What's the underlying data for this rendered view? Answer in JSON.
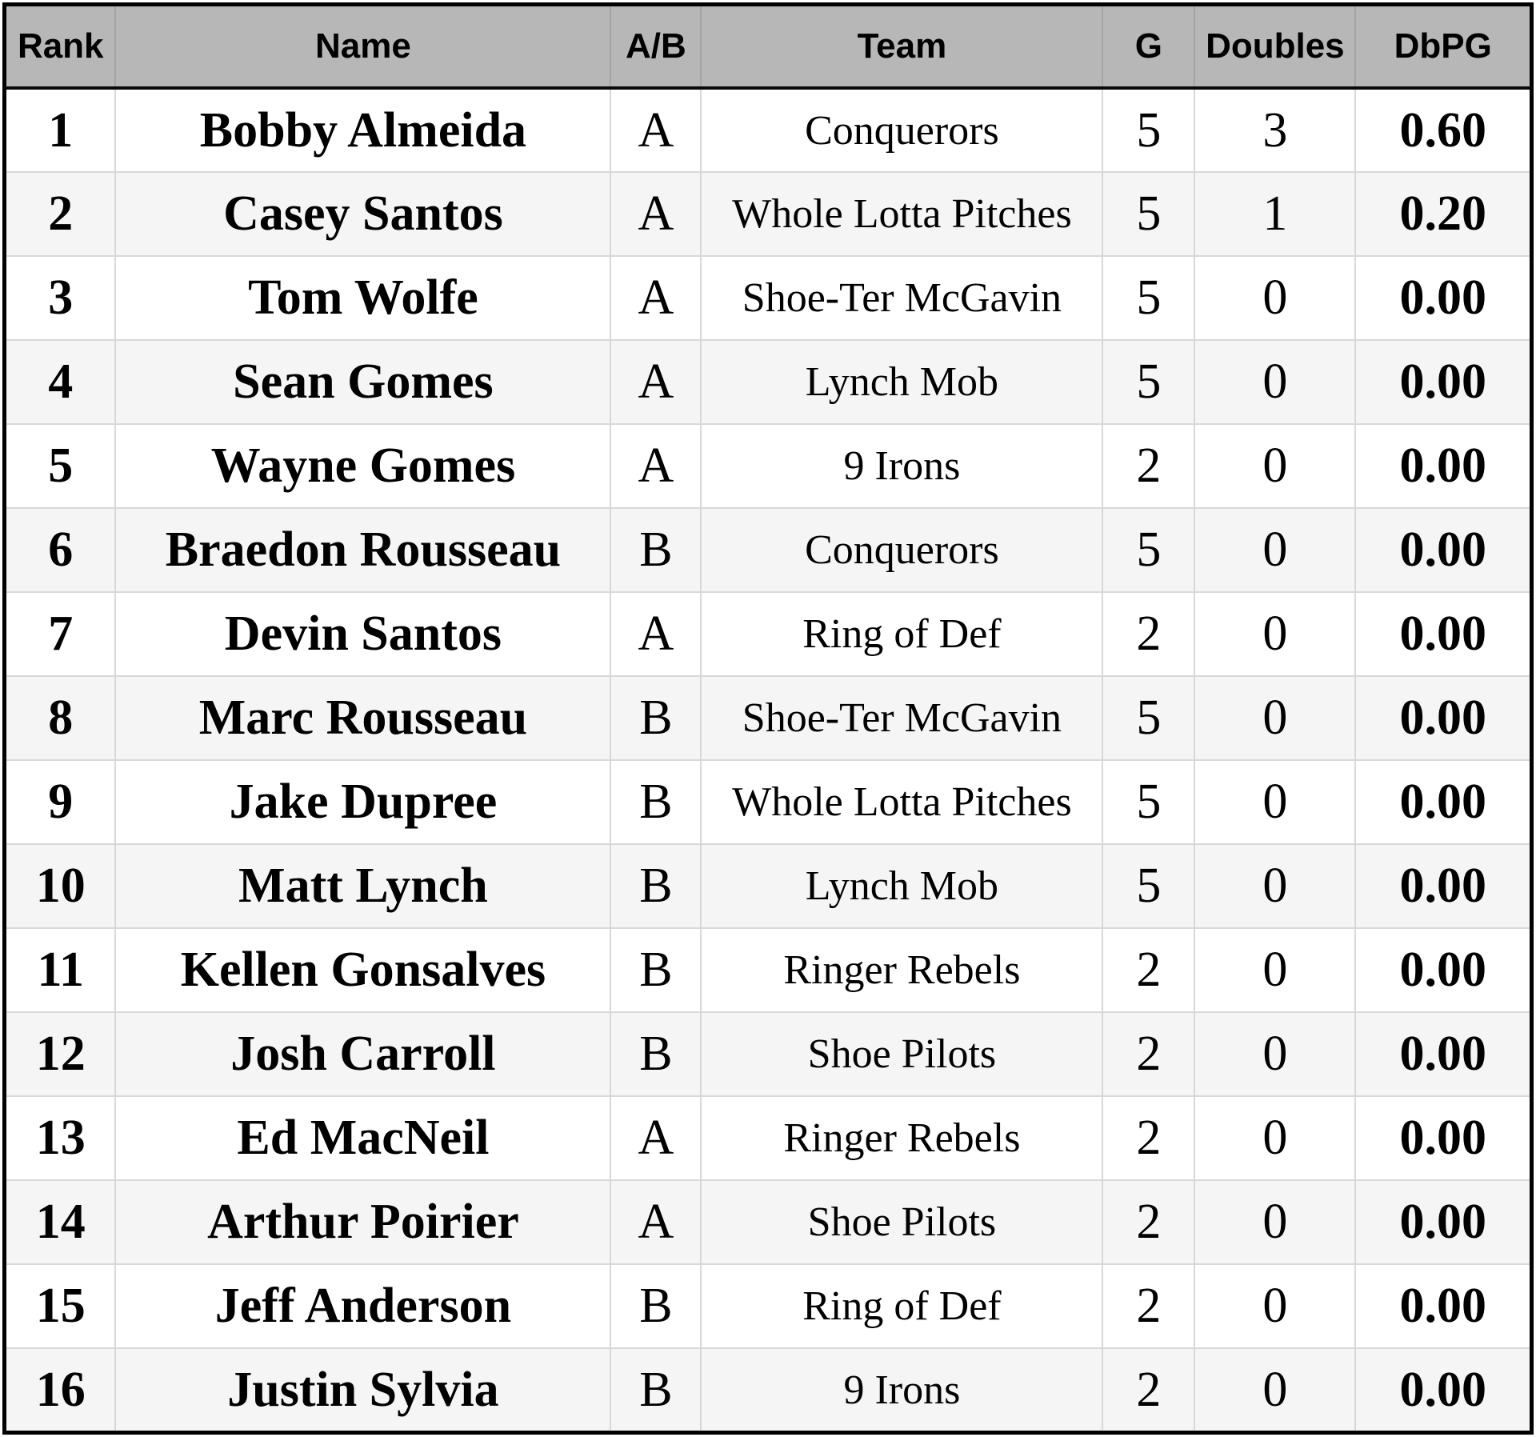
{
  "table": {
    "columns": [
      {
        "key": "rank",
        "label": "Rank"
      },
      {
        "key": "name",
        "label": "Name"
      },
      {
        "key": "ab",
        "label": "A/B"
      },
      {
        "key": "team",
        "label": "Team"
      },
      {
        "key": "g",
        "label": "G"
      },
      {
        "key": "doubles",
        "label": "Doubles"
      },
      {
        "key": "dbpg",
        "label": "DbPG"
      }
    ],
    "column_widths_pct": [
      7.28,
      32.42,
      5.92,
      26.3,
      6.02,
      10.53,
      11.53
    ],
    "rows": [
      {
        "rank": "1",
        "name": "Bobby Almeida",
        "ab": "A",
        "team": "Conquerors",
        "g": "5",
        "doubles": "3",
        "dbpg": "0.60"
      },
      {
        "rank": "2",
        "name": "Casey Santos",
        "ab": "A",
        "team": "Whole Lotta Pitches",
        "g": "5",
        "doubles": "1",
        "dbpg": "0.20"
      },
      {
        "rank": "3",
        "name": "Tom Wolfe",
        "ab": "A",
        "team": "Shoe-Ter McGavin",
        "g": "5",
        "doubles": "0",
        "dbpg": "0.00"
      },
      {
        "rank": "4",
        "name": "Sean Gomes",
        "ab": "A",
        "team": "Lynch Mob",
        "g": "5",
        "doubles": "0",
        "dbpg": "0.00"
      },
      {
        "rank": "5",
        "name": "Wayne Gomes",
        "ab": "A",
        "team": "9 Irons",
        "g": "2",
        "doubles": "0",
        "dbpg": "0.00"
      },
      {
        "rank": "6",
        "name": "Braedon Rousseau",
        "ab": "B",
        "team": "Conquerors",
        "g": "5",
        "doubles": "0",
        "dbpg": "0.00"
      },
      {
        "rank": "7",
        "name": "Devin Santos",
        "ab": "A",
        "team": "Ring of Def",
        "g": "2",
        "doubles": "0",
        "dbpg": "0.00"
      },
      {
        "rank": "8",
        "name": "Marc Rousseau",
        "ab": "B",
        "team": "Shoe-Ter McGavin",
        "g": "5",
        "doubles": "0",
        "dbpg": "0.00"
      },
      {
        "rank": "9",
        "name": "Jake Dupree",
        "ab": "B",
        "team": "Whole Lotta Pitches",
        "g": "5",
        "doubles": "0",
        "dbpg": "0.00"
      },
      {
        "rank": "10",
        "name": "Matt Lynch",
        "ab": "B",
        "team": "Lynch Mob",
        "g": "5",
        "doubles": "0",
        "dbpg": "0.00"
      },
      {
        "rank": "11",
        "name": "Kellen Gonsalves",
        "ab": "B",
        "team": "Ringer Rebels",
        "g": "2",
        "doubles": "0",
        "dbpg": "0.00"
      },
      {
        "rank": "12",
        "name": "Josh Carroll",
        "ab": "B",
        "team": "Shoe Pilots",
        "g": "2",
        "doubles": "0",
        "dbpg": "0.00"
      },
      {
        "rank": "13",
        "name": "Ed MacNeil",
        "ab": "A",
        "team": "Ringer Rebels",
        "g": "2",
        "doubles": "0",
        "dbpg": "0.00"
      },
      {
        "rank": "14",
        "name": "Arthur Poirier",
        "ab": "A",
        "team": "Shoe Pilots",
        "g": "2",
        "doubles": "0",
        "dbpg": "0.00"
      },
      {
        "rank": "15",
        "name": "Jeff Anderson",
        "ab": "B",
        "team": "Ring of Def",
        "g": "2",
        "doubles": "0",
        "dbpg": "0.00"
      },
      {
        "rank": "16",
        "name": "Justin Sylvia",
        "ab": "B",
        "team": "9 Irons",
        "g": "2",
        "doubles": "0",
        "dbpg": "0.00"
      }
    ]
  },
  "colors": {
    "header_bg": "#b7b7b7",
    "header_separator": "#a5a5a5",
    "row_alt_bg": "#f5f5f5",
    "gridline": "#d8d8d8",
    "outer_border": "#000000",
    "text": "#000000"
  }
}
